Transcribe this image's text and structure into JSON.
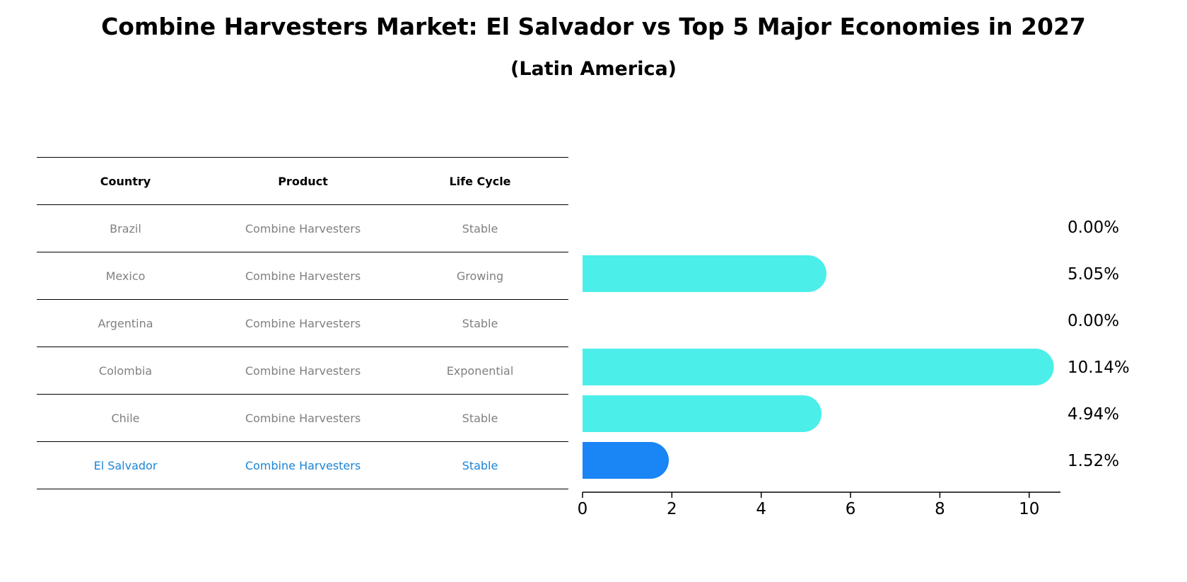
{
  "title": "Combine Harvesters Market: El Salvador vs Top 5 Major Economies in 2027",
  "subtitle": "(Latin America)",
  "table": {
    "headers": [
      "Country",
      "Product",
      "Life Cycle"
    ],
    "rows": [
      {
        "country": "Brazil",
        "product": "Combine Harvesters",
        "life_cycle": "Stable"
      },
      {
        "country": "Mexico",
        "product": "Combine Harvesters",
        "life_cycle": "Growing"
      },
      {
        "country": "Argentina",
        "product": "Combine Harvesters",
        "life_cycle": "Stable"
      },
      {
        "country": "Colombia",
        "product": "Combine Harvesters",
        "life_cycle": "Exponential"
      },
      {
        "country": "Chile",
        "product": "Combine Harvesters",
        "life_cycle": "Stable"
      },
      {
        "country": "El Salvador",
        "product": "Combine Harvesters",
        "life_cycle": "Stable"
      }
    ]
  },
  "chart_data": {
    "type": "bar",
    "orientation": "horizontal",
    "categories": [
      "Brazil",
      "Mexico",
      "Argentina",
      "Colombia",
      "Chile",
      "El Salvador"
    ],
    "values": [
      0.0,
      5.05,
      0.0,
      10.14,
      4.94,
      1.52
    ],
    "value_labels": [
      "0.00%",
      "5.05%",
      "0.00%",
      "10.14%",
      "4.94%",
      "1.52%"
    ],
    "x_ticks": [
      "0",
      "2",
      "4",
      "6",
      "8",
      "10"
    ],
    "x_tick_values": [
      0,
      2,
      4,
      6,
      8,
      10
    ],
    "xlim": [
      0,
      10.7
    ],
    "grid": false,
    "colors": {
      "default": "#4ceeea",
      "highlight": "#1a85f5"
    }
  }
}
